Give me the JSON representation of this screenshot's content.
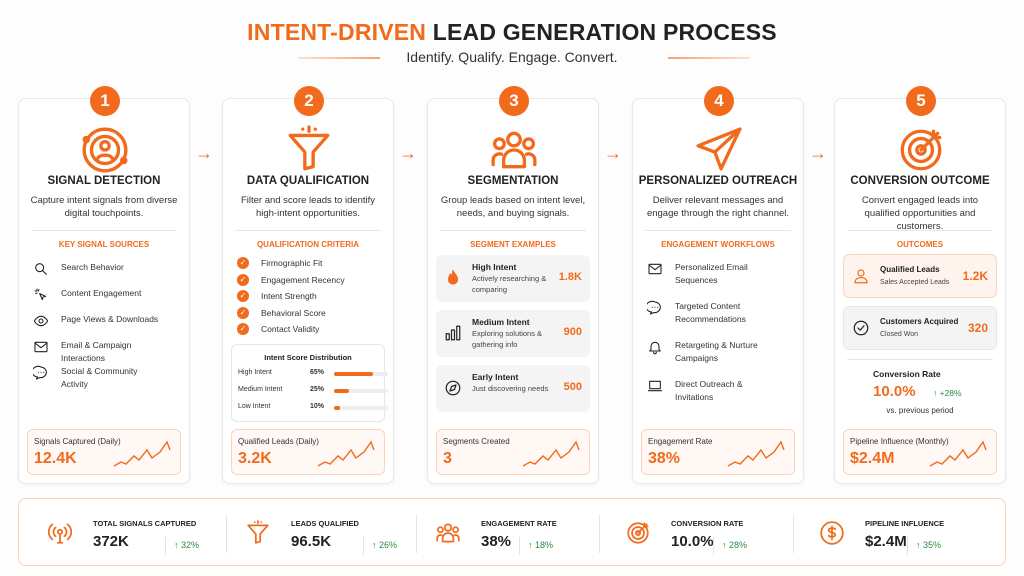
{
  "header": {
    "title_accent": "INTENT-DRIVEN",
    "title_rest": "LEAD GENERATION PROCESS",
    "subtitle": "Identify. Qualify. Engage. Convert."
  },
  "accent_color": "#f26a1b",
  "positive_color": "#2e8b3e",
  "steps": [
    {
      "number": "1",
      "icon": "radar-user-icon",
      "title": "SIGNAL DETECTION",
      "description": "Capture intent signals from diverse digital touchpoints.",
      "section": "KEY SIGNAL SOURCES",
      "items": [
        {
          "icon": "search-icon",
          "label": "Search Behavior"
        },
        {
          "icon": "cursor-click-icon",
          "label": "Content Engagement"
        },
        {
          "icon": "eye-icon",
          "label": "Page Views & Downloads"
        },
        {
          "icon": "mail-icon",
          "label": "Email & Campaign Interactions"
        },
        {
          "icon": "chat-icon",
          "label": "Social & Community Activity"
        }
      ],
      "metric": {
        "label": "Signals Captured (Daily)",
        "value": "12.4K"
      }
    },
    {
      "number": "2",
      "icon": "funnel-icon",
      "title": "DATA QUALIFICATION",
      "description": "Filter and score leads to identify high-intent opportunities.",
      "section": "QUALIFICATION CRITERIA",
      "criteria": [
        "Firmographic Fit",
        "Engagement Recency",
        "Intent Strength",
        "Behavioral Score",
        "Contact Validity"
      ],
      "distribution": {
        "title": "Intent Score Distribution",
        "rows": [
          {
            "label": "High Intent",
            "percent": "65%",
            "value": 65
          },
          {
            "label": "Medium Intent",
            "percent": "25%",
            "value": 25
          },
          {
            "label": "Low Intent",
            "percent": "10%",
            "value": 10
          }
        ]
      },
      "metric": {
        "label": "Qualified Leads (Daily)",
        "value": "3.2K"
      }
    },
    {
      "number": "3",
      "icon": "users-group-icon",
      "title": "SEGMENTATION",
      "description": "Group leads based on intent level, needs, and buying signals.",
      "section": "SEGMENT EXAMPLES",
      "segments": [
        {
          "icon": "flame-icon",
          "name": "High Intent",
          "desc": "Actively researching & comparing",
          "value": "1.8K"
        },
        {
          "icon": "bar-chart-icon",
          "name": "Medium Intent",
          "desc": "Exploring solutions & gathering info",
          "value": "900"
        },
        {
          "icon": "compass-icon",
          "name": "Early Intent",
          "desc": "Just discovering needs",
          "value": "500"
        }
      ],
      "metric": {
        "label": "Segments Created",
        "value": "3"
      }
    },
    {
      "number": "4",
      "icon": "paper-plane-icon",
      "title": "PERSONALIZED OUTREACH",
      "description": "Deliver relevant messages and engage through the right channel.",
      "section": "ENGAGEMENT WORKFLOWS",
      "items": [
        {
          "icon": "mail-icon",
          "label": "Personalized Email Sequences"
        },
        {
          "icon": "chat-icon",
          "label": "Targeted Content Recommendations"
        },
        {
          "icon": "bell-icon",
          "label": "Retargeting & Nurture Campaigns"
        },
        {
          "icon": "laptop-icon",
          "label": "Direct Outreach & Invitations"
        }
      ],
      "metric": {
        "label": "Engagement Rate",
        "value": "38%"
      }
    },
    {
      "number": "5",
      "icon": "target-icon",
      "title": "CONVERSION OUTCOME",
      "description": "Convert engaged leads into qualified opportunities and customers.",
      "section": "OUTCOMES",
      "outcomes": [
        {
          "icon": "user-icon",
          "name": "Qualified Leads",
          "desc": "Sales Accepted Leads",
          "value": "1.2K"
        },
        {
          "icon": "check-circle-icon",
          "name": "Customers Acquired",
          "desc": "Closed Won",
          "value": "320"
        }
      ],
      "conversion": {
        "label": "Conversion Rate",
        "value": "10.0%",
        "change": "↑ +28%",
        "note": "vs. previous period"
      },
      "metric": {
        "label": "Pipeline Influence (Monthly)",
        "value": "$2.4M"
      }
    }
  ],
  "kpis": [
    {
      "icon": "signal-tower-icon",
      "label": "TOTAL SIGNALS CAPTURED",
      "value": "372K",
      "change": "↑ 32%"
    },
    {
      "icon": "funnel-icon",
      "label": "LEADS QUALIFIED",
      "value": "96.5K",
      "change": "↑ 26%"
    },
    {
      "icon": "users-group-icon",
      "label": "ENGAGEMENT RATE",
      "value": "38%",
      "change": "↑ 18%"
    },
    {
      "icon": "target-icon",
      "label": "CONVERSION RATE",
      "value": "10.0%",
      "change": "↑ 28%"
    },
    {
      "icon": "dollar-circle-icon",
      "label": "PIPELINE INFLUENCE",
      "value": "$2.4M",
      "change": "↑ 35%"
    }
  ]
}
